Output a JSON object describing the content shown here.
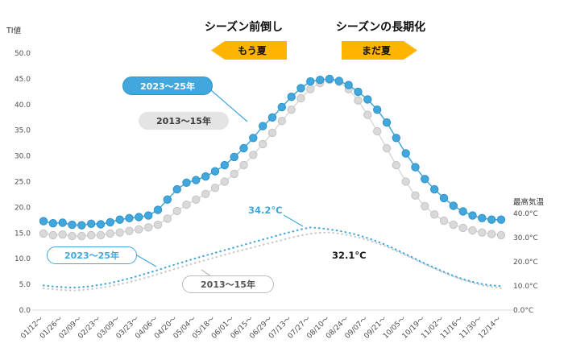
{
  "header": {
    "left_heading": "シーズン前倒し",
    "left_arrow": "もう夏",
    "right_heading": "シーズンの長期化",
    "right_arrow": "まだ夏"
  },
  "axes": {
    "left_label": "TI値",
    "right_label": "最高気温",
    "left_ticks": [
      "0.0",
      "5.0",
      "10.0",
      "15.0",
      "20.0",
      "25.0",
      "30.0",
      "35.0",
      "40.0",
      "45.0",
      "50.0"
    ],
    "right_ticks": [
      "0.0°C",
      "10.0°C",
      "20.0°C",
      "30.0°C",
      "40.0°C"
    ]
  },
  "labels": {
    "ti_blue": "2023〜25年",
    "ti_gray": "2013〜15年",
    "temp_blue": "2023〜25年",
    "temp_gray": "2013〜15年"
  },
  "annotations": {
    "temp_peak_blue": "34.2°C",
    "temp_peak_gray": "32.1°C"
  },
  "colors": {
    "blue": "#41a7dc",
    "blue_dark": "#2d93c8",
    "gray": "#d9d9d9",
    "gray_dark": "#c4c4c4",
    "temp_gray": "#c9c9c9",
    "ribbon_yellow": "#ffb400"
  },
  "chart_data": {
    "type": "line",
    "title": "",
    "xlabel": "",
    "ylabel_left": "TI値",
    "ylabel_right": "最高気温",
    "ylim_left": [
      0,
      50
    ],
    "ylim_right": [
      0,
      40
    ],
    "grid": false,
    "points_per_label": 2,
    "x_labels": [
      "01/12〜",
      "01/26〜",
      "02/09〜",
      "02/23〜",
      "03/09〜",
      "03/23〜",
      "04/06〜",
      "04/20〜",
      "05/04〜",
      "05/18〜",
      "06/01〜",
      "06/15〜",
      "06/29〜",
      "07/13〜",
      "07/27〜",
      "08/10〜",
      "08/24〜",
      "09/07〜",
      "09/21〜",
      "10/05〜",
      "10/19〜",
      "11/02〜",
      "11/16〜",
      "11/30〜",
      "12/14〜"
    ],
    "series": [
      {
        "name": "2013〜15年 最高気温",
        "axis": "right",
        "style": "dotted",
        "color": "#c9c9c9",
        "values": [
          9.0,
          8.6,
          8.3,
          8.1,
          8.3,
          8.7,
          9.2,
          9.9,
          10.7,
          11.6,
          12.6,
          13.7,
          14.9,
          16.1,
          17.3,
          18.5,
          19.6,
          20.7,
          21.8,
          22.9,
          24.0,
          25.0,
          26.0,
          27.0,
          28.0,
          29.0,
          30.0,
          30.9,
          31.6,
          32.0,
          32.1,
          31.7,
          31.0,
          30.1,
          29.0,
          27.7,
          26.2,
          24.5,
          22.7,
          20.9,
          19.0,
          17.2,
          15.5,
          13.9,
          12.5,
          11.3,
          10.3,
          9.6,
          9.1
        ]
      },
      {
        "name": "2023〜25年 最高気温",
        "axis": "right",
        "style": "dotted",
        "color": "#41a7dc",
        "values": [
          10.2,
          9.8,
          9.5,
          9.3,
          9.5,
          9.9,
          10.5,
          11.2,
          12.1,
          13.1,
          14.2,
          15.4,
          16.6,
          17.9,
          19.1,
          20.3,
          21.5,
          22.6,
          23.7,
          24.8,
          25.9,
          27.0,
          28.1,
          29.2,
          30.3,
          31.4,
          32.4,
          33.4,
          34.2,
          33.9,
          33.4,
          32.8,
          32.0,
          31.0,
          29.8,
          28.4,
          26.8,
          25.0,
          23.1,
          21.2,
          19.3,
          17.5,
          15.8,
          14.2,
          12.8,
          11.7,
          10.8,
          10.2,
          9.9
        ]
      },
      {
        "name": "2013〜15年 TI値",
        "axis": "left",
        "style": "dots",
        "color": "#d9d9d9",
        "stroke": "#c4c4c4",
        "values": [
          14.9,
          14.6,
          14.7,
          14.4,
          14.4,
          14.6,
          14.6,
          14.9,
          15.1,
          15.4,
          15.7,
          16.1,
          16.6,
          17.8,
          19.3,
          20.5,
          21.5,
          22.6,
          23.8,
          25.0,
          26.5,
          28.2,
          30.2,
          32.3,
          34.5,
          36.8,
          39.0,
          41.2,
          43.0,
          44.2,
          44.8,
          44.4,
          43.0,
          40.8,
          38.0,
          34.8,
          31.5,
          28.2,
          25.0,
          22.3,
          20.2,
          18.6,
          17.4,
          16.6,
          16.0,
          15.5,
          15.1,
          14.8,
          14.6
        ]
      },
      {
        "name": "2023〜25年 TI値",
        "axis": "left",
        "style": "dots",
        "color": "#41a7dc",
        "stroke": "#2d93c8",
        "values": [
          17.3,
          16.9,
          17.0,
          16.6,
          16.5,
          16.8,
          16.7,
          17.1,
          17.6,
          17.9,
          18.1,
          18.4,
          19.5,
          21.5,
          23.5,
          24.8,
          25.3,
          26.0,
          27.0,
          28.2,
          29.8,
          31.5,
          33.5,
          35.8,
          37.5,
          39.5,
          41.5,
          43.2,
          44.5,
          44.8,
          45.0,
          44.6,
          43.8,
          42.5,
          41.0,
          39.0,
          36.5,
          33.5,
          30.5,
          27.8,
          25.5,
          23.5,
          21.8,
          20.3,
          19.2,
          18.4,
          17.9,
          17.6,
          17.6
        ]
      }
    ]
  }
}
